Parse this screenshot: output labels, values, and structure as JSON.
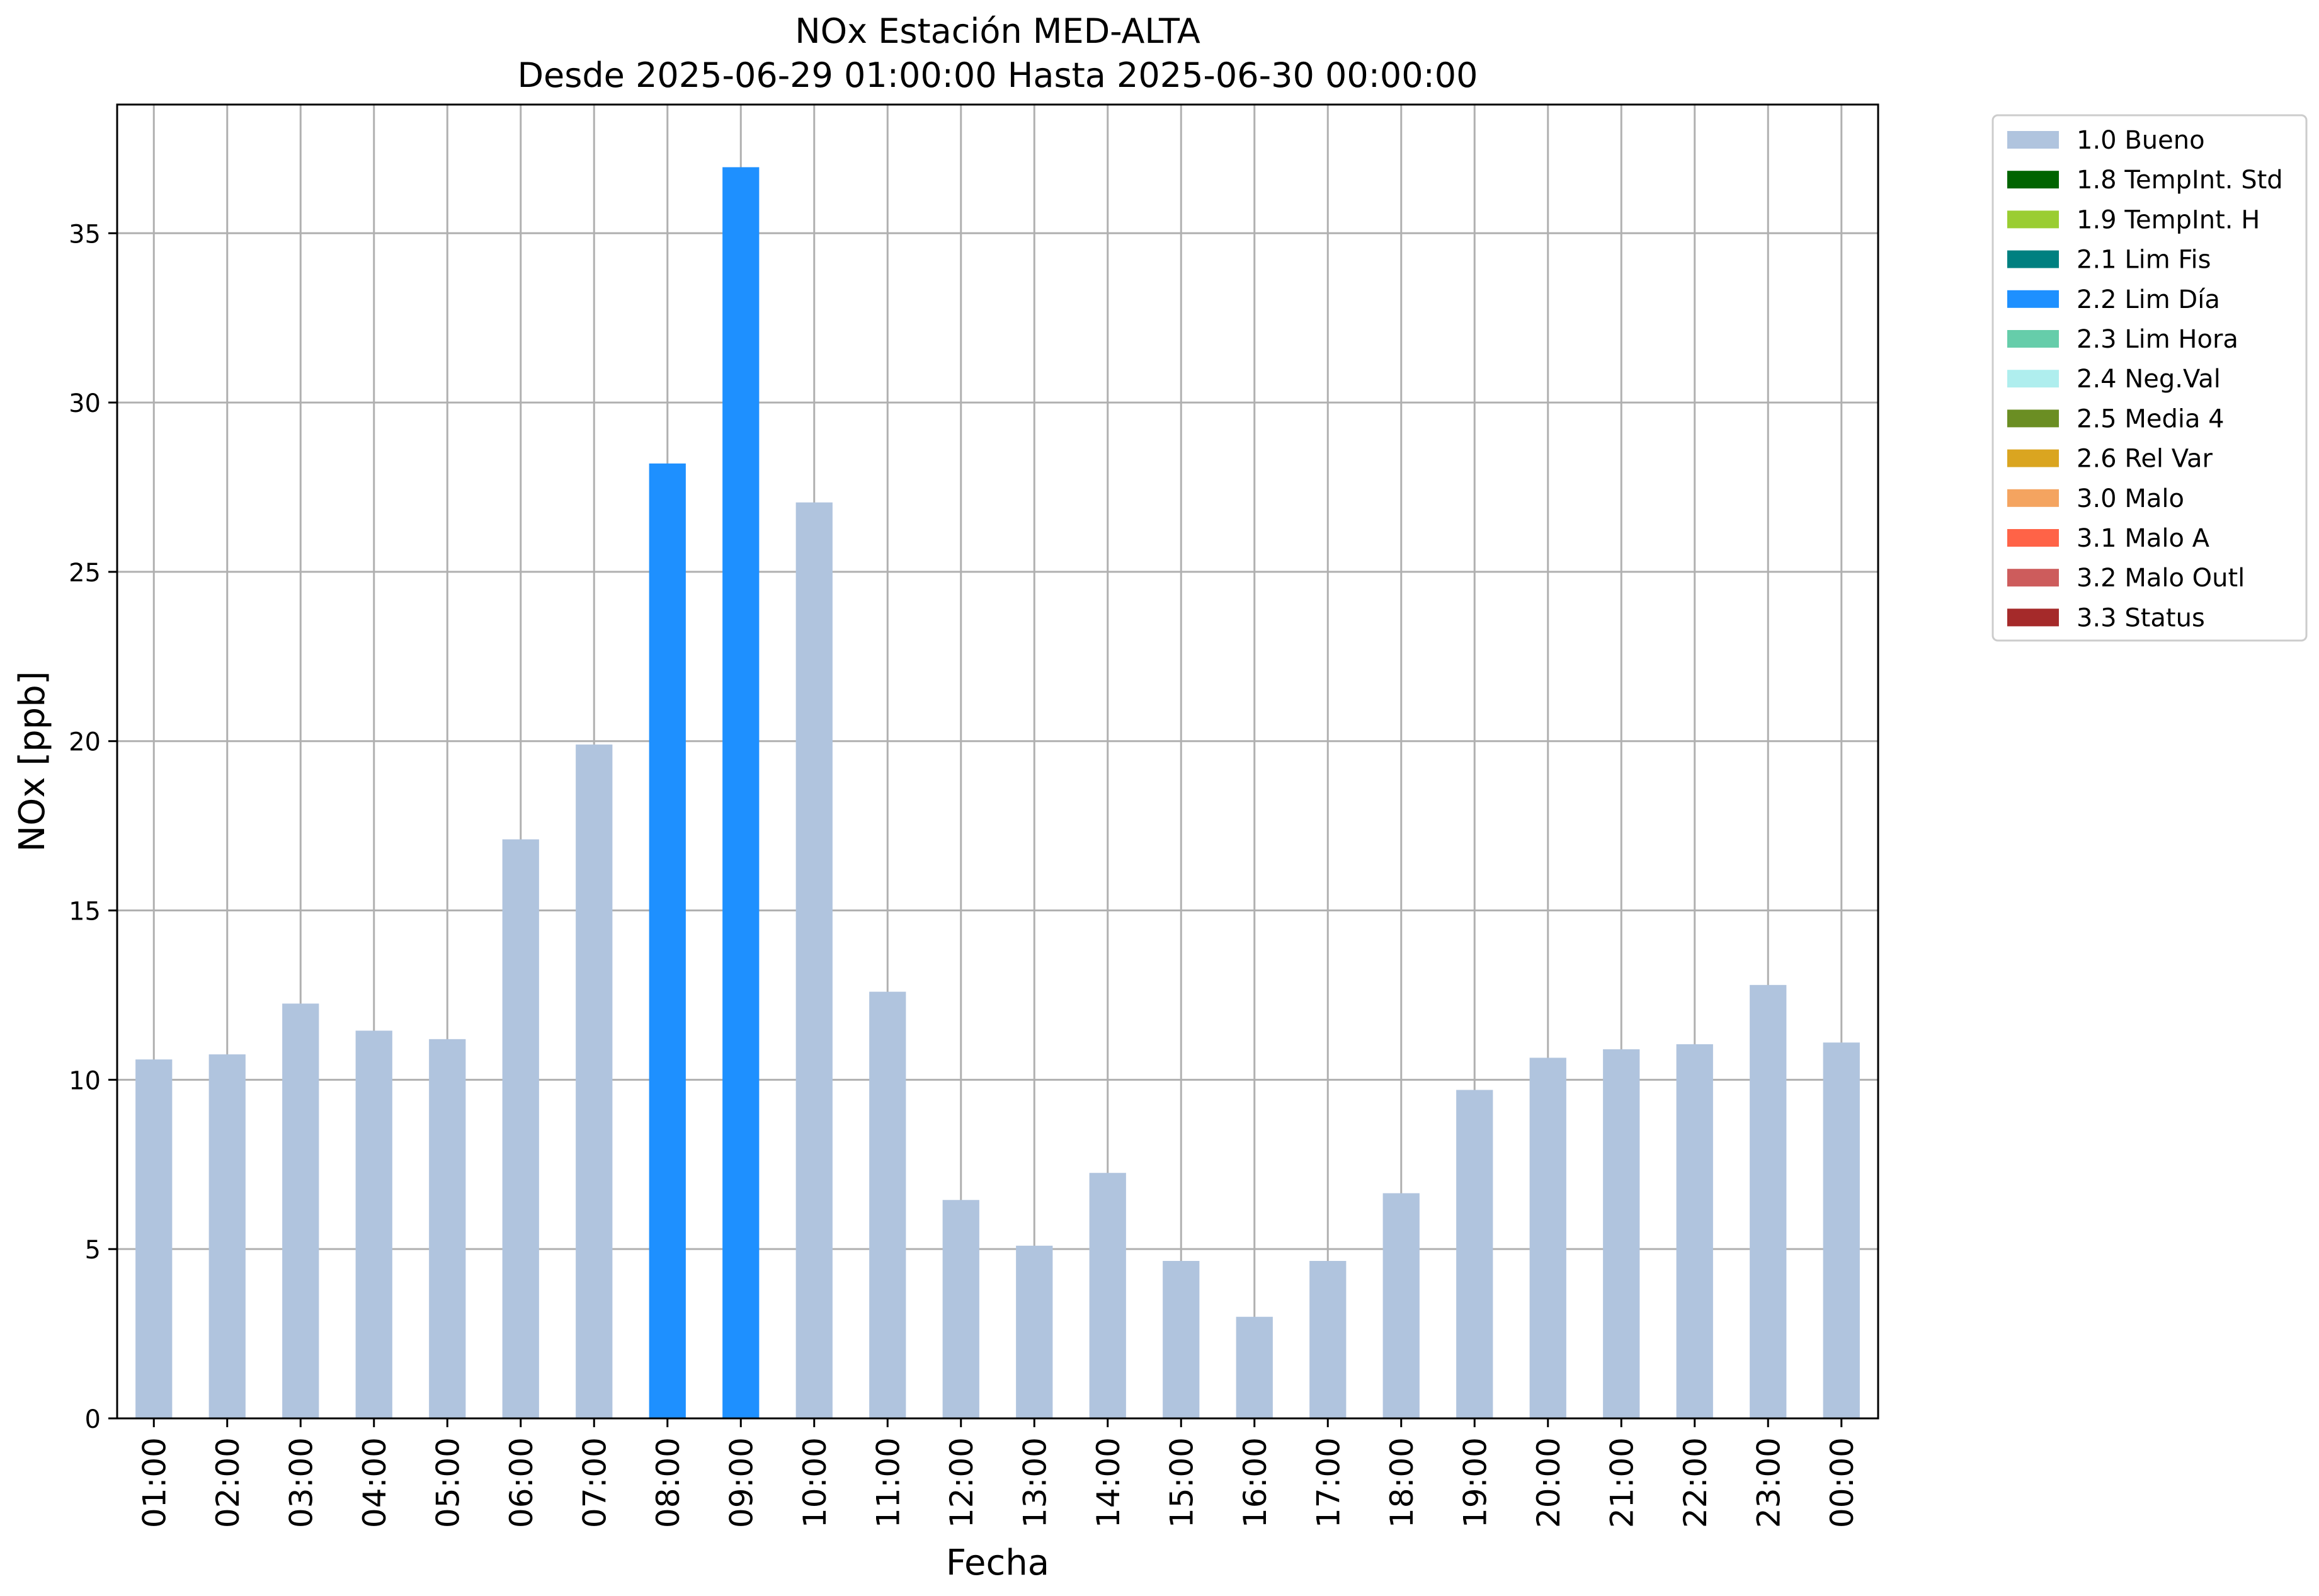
{
  "chart_data": {
    "type": "bar",
    "title": "NOx Estación MED-ALTA",
    "subtitle": "Desde 2025-06-29 01:00:00 Hasta 2025-06-30 00:00:00",
    "xlabel": "Fecha",
    "ylabel": "NOx [ppb]",
    "ylim": [
      0,
      38.8
    ],
    "yticks": [
      0,
      5,
      10,
      15,
      20,
      25,
      30,
      35
    ],
    "grid": true,
    "legend_position": "outside-top-right",
    "categories": [
      "01:00",
      "02:00",
      "03:00",
      "04:00",
      "05:00",
      "06:00",
      "07:00",
      "08:00",
      "09:00",
      "10:00",
      "11:00",
      "12:00",
      "13:00",
      "14:00",
      "15:00",
      "16:00",
      "17:00",
      "18:00",
      "19:00",
      "20:00",
      "21:00",
      "22:00",
      "23:00",
      "00:00"
    ],
    "values": [
      10.6,
      10.75,
      12.25,
      11.45,
      11.2,
      17.1,
      19.9,
      28.2,
      36.95,
      27.05,
      12.6,
      6.45,
      5.1,
      7.25,
      4.65,
      3.0,
      4.65,
      6.65,
      9.7,
      10.65,
      10.9,
      11.05,
      12.8,
      11.1
    ],
    "flags": [
      "1.0 Bueno",
      "1.0 Bueno",
      "1.0 Bueno",
      "1.0 Bueno",
      "1.0 Bueno",
      "1.0 Bueno",
      "1.0 Bueno",
      "2.2 Lim Día",
      "2.2 Lim Día",
      "1.0 Bueno",
      "1.0 Bueno",
      "1.0 Bueno",
      "1.0 Bueno",
      "1.0 Bueno",
      "1.0 Bueno",
      "1.0 Bueno",
      "1.0 Bueno",
      "1.0 Bueno",
      "1.0 Bueno",
      "1.0 Bueno",
      "1.0 Bueno",
      "1.0 Bueno",
      "1.0 Bueno",
      "1.0 Bueno"
    ],
    "legend": [
      {
        "label": "1.0 Bueno",
        "color": "#b0c4de"
      },
      {
        "label": "1.8 TempInt. Std",
        "color": "#006400"
      },
      {
        "label": "1.9 TempInt. H",
        "color": "#9acd32"
      },
      {
        "label": "2.1 Lim Fis",
        "color": "#008080"
      },
      {
        "label": "2.2 Lim Día",
        "color": "#1e90ff"
      },
      {
        "label": "2.3 Lim Hora",
        "color": "#66cdaa"
      },
      {
        "label": "2.4 Neg.Val",
        "color": "#afeeee"
      },
      {
        "label": "2.5 Media 4",
        "color": "#6b8e23"
      },
      {
        "label": "2.6 Rel Var",
        "color": "#daa520"
      },
      {
        "label": "3.0 Malo",
        "color": "#f4a460"
      },
      {
        "label": "3.1 Malo A",
        "color": "#ff6347"
      },
      {
        "label": "3.2 Malo Outl",
        "color": "#cd5c5c"
      },
      {
        "label": "3.3 Status",
        "color": "#a52a2a"
      }
    ]
  }
}
